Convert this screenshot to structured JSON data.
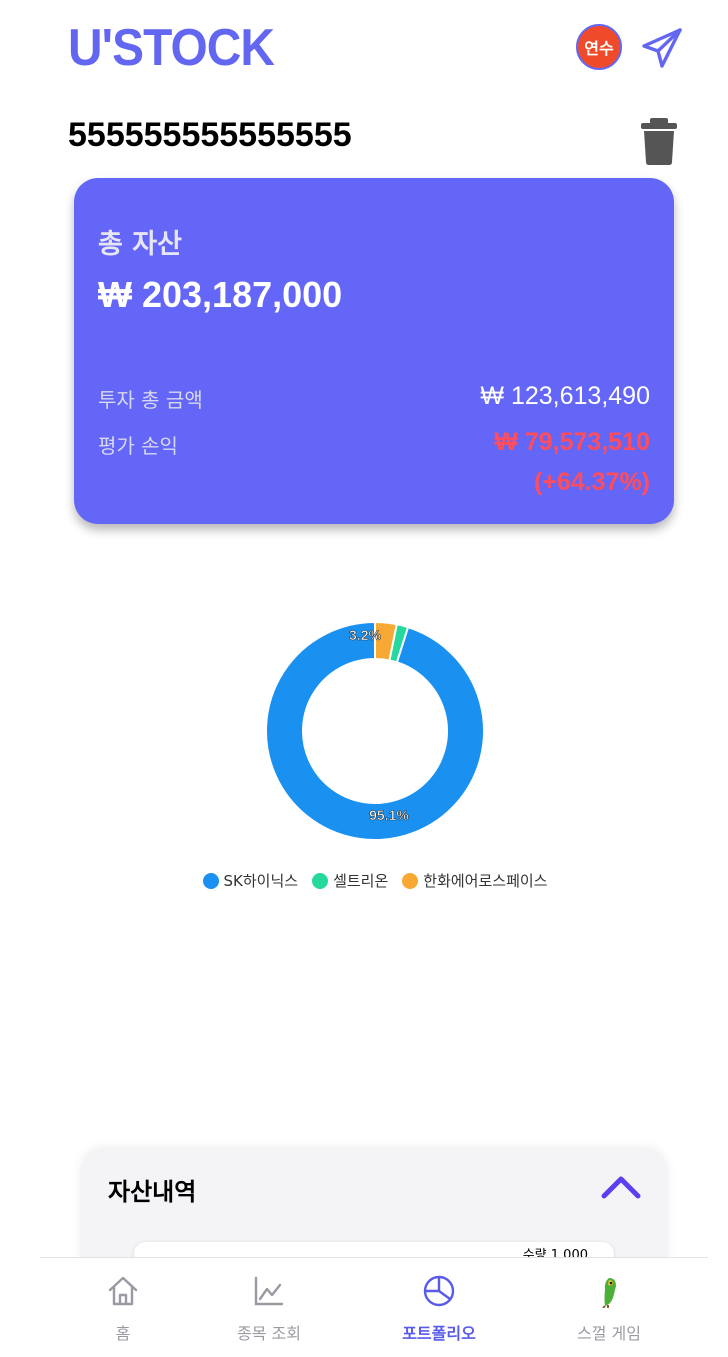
{
  "header": {
    "logo": "U'STOCK",
    "avatar_label": "연수"
  },
  "account": {
    "number": "555555555555555"
  },
  "summary": {
    "title": "총 자산",
    "total": "₩ 203,187,000",
    "invest_label": "투자 총 금액",
    "invest_value": "₩ 123,613,490",
    "pl_label": "평가 손익",
    "pl_value": "₩ 79,573,510",
    "pl_percent": "(+64.37%)"
  },
  "portfolio": {
    "slices": [
      {
        "name": "SK하이닉스",
        "value": 95.1,
        "color": "#1a91f0"
      },
      {
        "name": "셀트리온",
        "value": 1.7,
        "color": "#25d99e"
      },
      {
        "name": "한화에어로스페이스",
        "value": 3.2,
        "color": "#f7a934"
      }
    ],
    "labels": [
      "3.2%",
      "95.1%"
    ]
  },
  "assets": {
    "title": "자산내역",
    "peek_text": "수량 1,000"
  },
  "nav": {
    "items": [
      {
        "label": "홈",
        "icon": "home-icon"
      },
      {
        "label": "종목 조회",
        "icon": "chart-line-icon"
      },
      {
        "label": "포트폴리오",
        "icon": "pie-chart-icon"
      },
      {
        "label": "스껄 게임",
        "icon": "parrot-icon"
      }
    ],
    "active_index": 2,
    "active_color": "#5b5bea"
  },
  "colors": {
    "brand": "#6366f1",
    "card": "#6366f6",
    "loss_profit": "#ff4d5e"
  }
}
